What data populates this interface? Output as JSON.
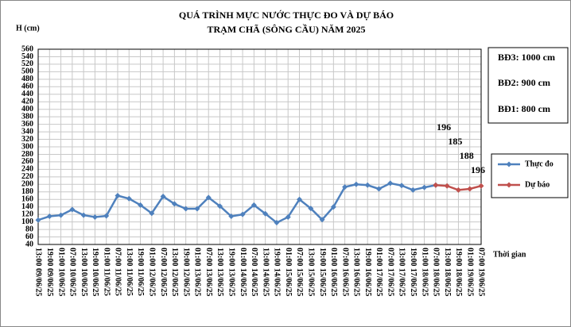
{
  "chart_data": {
    "type": "line",
    "title": "QUÁ TRÌNH MỰC NƯỚC THỰC ĐO VÀ DỰ BÁO",
    "subtitle": "TRẠM CHÃ (SÔNG CẦU) NĂM 2025",
    "y_label": "H (cm)",
    "x_label": "Thời gian",
    "annotations": [
      "BĐ3: 1000 cm",
      "BĐ2: 900 cm",
      "BĐ1: 800 cm"
    ],
    "categories": [
      "13:00 09/06/25",
      "19:00 09/06/25",
      "01:00 10/06/25",
      "07:00 10/06/25",
      "13:00 10/06/25",
      "19:00 10/06/25",
      "01:00 11/06/25",
      "07:00 11/06/25",
      "13:00 11/06/25",
      "19:00 11/06/25",
      "01:00 12/06/25",
      "07:00 12/06/25",
      "13:00 12/06/25",
      "19:00 12/06/25",
      "01:00 13/06/25",
      "07:00 13/06/25",
      "13:00 13/06/25",
      "19:00 13/06/25",
      "01:00 14/06/25",
      "07:00 14/06/25",
      "13:00 14/06/25",
      "19:00 14/06/25",
      "01:00 15/06/25",
      "07:00 15/06/25",
      "13:00 15/06/25",
      "19:00 15/06/25",
      "01:00 16/06/25",
      "07:00 16/06/25",
      "13:00 16/06/25",
      "19:00 16/06/25",
      "01:00 17/06/25",
      "07:00 17/06/25",
      "13:00 17/06/25",
      "19:00 17/06/25",
      "01:00 18/06/25",
      "07:00 18/06/25",
      "13:00 18/06/25",
      "19:00 18/06/25",
      "01:00 19/06/25",
      "07:00 19/06/25"
    ],
    "series": [
      {
        "name": "Thực đo",
        "color": "#4f81bd",
        "values": [
          105,
          115,
          118,
          133,
          118,
          113,
          116,
          170,
          162,
          145,
          123,
          168,
          148,
          135,
          135,
          165,
          142,
          115,
          120,
          145,
          122,
          98,
          113,
          160,
          136,
          106,
          140,
          193,
          200,
          198,
          188,
          203,
          197,
          185,
          192,
          198,
          null,
          null,
          null,
          null
        ]
      },
      {
        "name": "Dự báo",
        "color": "#c0504d",
        "values": [
          null,
          null,
          null,
          null,
          null,
          null,
          null,
          null,
          null,
          null,
          null,
          null,
          null,
          null,
          null,
          null,
          null,
          null,
          null,
          null,
          null,
          null,
          null,
          null,
          null,
          null,
          null,
          null,
          null,
          null,
          null,
          null,
          null,
          null,
          null,
          198,
          196,
          185,
          188,
          196
        ]
      }
    ],
    "ylim": [
      40,
      560
    ],
    "yticks": [
      40,
      60,
      80,
      100,
      120,
      140,
      160,
      180,
      200,
      220,
      240,
      260,
      280,
      300,
      320,
      340,
      360,
      380,
      400,
      420,
      440,
      460,
      480,
      500,
      520,
      540,
      560
    ],
    "grid": true
  }
}
